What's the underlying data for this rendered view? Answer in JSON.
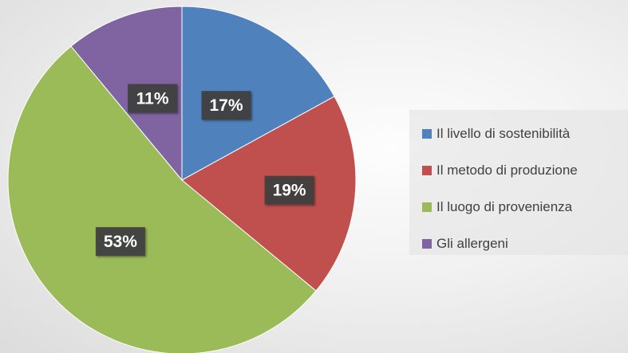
{
  "chart_data": {
    "type": "pie",
    "categories": [
      "Il livello di sostenibilità",
      "Il metodo di produzione",
      "Il luogo di provenienza",
      "Gli allergeni"
    ],
    "values": [
      17,
      19,
      53,
      11
    ],
    "data_labels": [
      "17%",
      "19%",
      "53%",
      "11%"
    ],
    "colors": [
      "#4f81bd",
      "#c0504d",
      "#9bbb59",
      "#8064a2"
    ],
    "start_angle": "12 o'clock",
    "direction": "clockwise",
    "legend_position": "right",
    "title": ""
  }
}
